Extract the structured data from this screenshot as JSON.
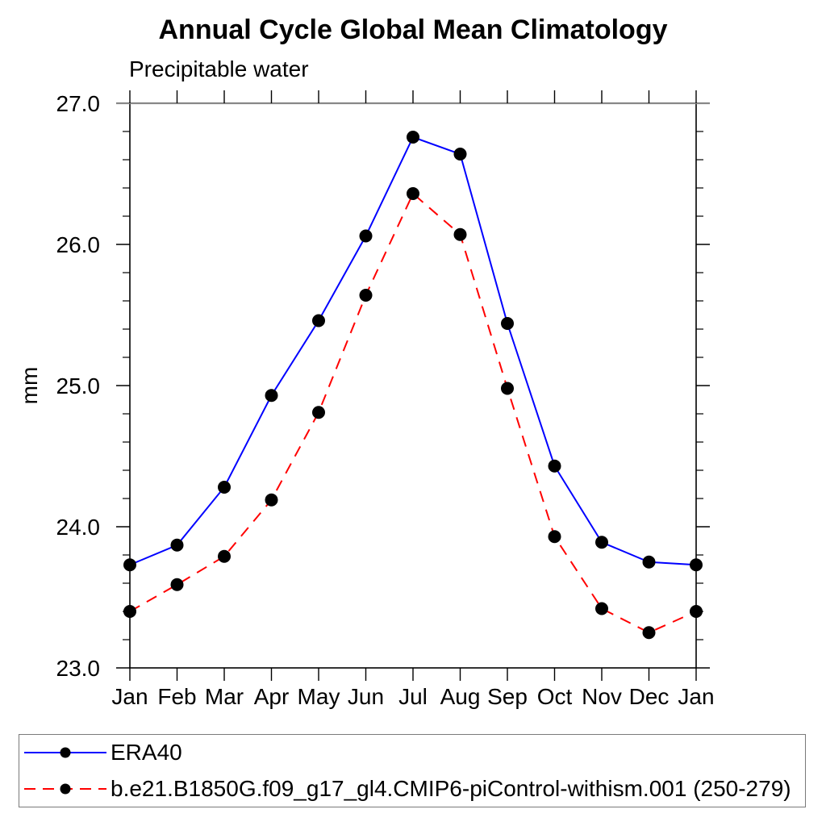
{
  "chart_data": {
    "type": "line",
    "title": "Annual Cycle Global Mean Climatology",
    "subtitle": "Precipitable water",
    "ylabel": "mm",
    "xlabel": "",
    "categories": [
      "Jan",
      "Feb",
      "Mar",
      "Apr",
      "May",
      "Jun",
      "Jul",
      "Aug",
      "Sep",
      "Oct",
      "Nov",
      "Dec",
      "Jan"
    ],
    "ylim": [
      23.0,
      27.0
    ],
    "ytick_major": [
      23.0,
      24.0,
      25.0,
      26.0,
      27.0
    ],
    "ytick_labels": [
      "23.0",
      "24.0",
      "25.0",
      "26.0",
      "27.0"
    ],
    "ytick_minor_step": 0.2,
    "grid": false,
    "legend_position": "bottom-left-box",
    "frame_color": "#000000",
    "top_edge_color": "#888888",
    "marker_color": "#000000",
    "series": [
      {
        "name": "ERA40",
        "color": "#0000ff",
        "line_style": "solid",
        "marker": "circle",
        "values": [
          23.73,
          23.87,
          24.28,
          24.93,
          25.46,
          26.06,
          26.76,
          26.64,
          25.44,
          24.43,
          23.89,
          23.75,
          23.73
        ]
      },
      {
        "name": "b.e21.B1850G.f09_g17_gl4.CMIP6-piControl-withism.001 (250-279)",
        "color": "#ff0000",
        "line_style": "dashed",
        "marker": "circle",
        "values": [
          23.4,
          23.59,
          23.79,
          24.19,
          24.81,
          25.64,
          26.36,
          26.07,
          24.98,
          23.93,
          23.42,
          23.25,
          23.4
        ]
      }
    ]
  }
}
